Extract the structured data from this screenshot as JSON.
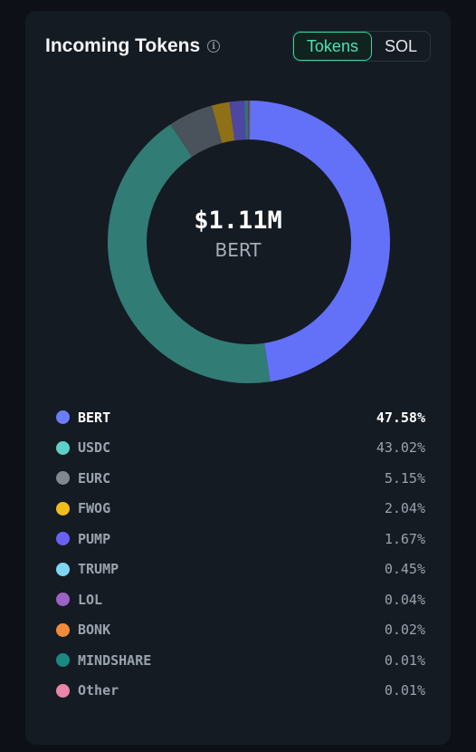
{
  "header": {
    "title": "Incoming Tokens",
    "toggle": {
      "options": [
        "Tokens",
        "SOL"
      ],
      "active": "Tokens"
    }
  },
  "chart_data": {
    "type": "pie",
    "style": "donut",
    "center_value": "$1.11M",
    "center_label": "BERT",
    "categories": [
      "BERT",
      "USDC",
      "EURC",
      "FWOG",
      "PUMP",
      "TRUMP",
      "LOL",
      "BONK",
      "MINDSHARE",
      "Other"
    ],
    "values": [
      47.58,
      43.02,
      5.15,
      2.04,
      1.67,
      0.45,
      0.04,
      0.02,
      0.01,
      0.01
    ],
    "labels": [
      "47.58%",
      "43.02%",
      "5.15%",
      "2.04%",
      "1.67%",
      "0.45%",
      "0.04%",
      "0.02%",
      "0.01%",
      "0.01%"
    ],
    "legend": "bottom",
    "colors": {
      "slices": [
        "#6371f9",
        "#327c76",
        "#4a535c",
        "#8e7017",
        "#4d47a1",
        "#3b6c83",
        "#5b4a86",
        "#8a5a30",
        "#1f6b69",
        "#8a5468"
      ],
      "dots": [
        "#6b7cff",
        "#5ed1c6",
        "#818890",
        "#f1bd1a",
        "#6a61f4",
        "#7cd6f4",
        "#9d62c6",
        "#f38a3a",
        "#1a8a80",
        "#ec85aa"
      ]
    }
  }
}
